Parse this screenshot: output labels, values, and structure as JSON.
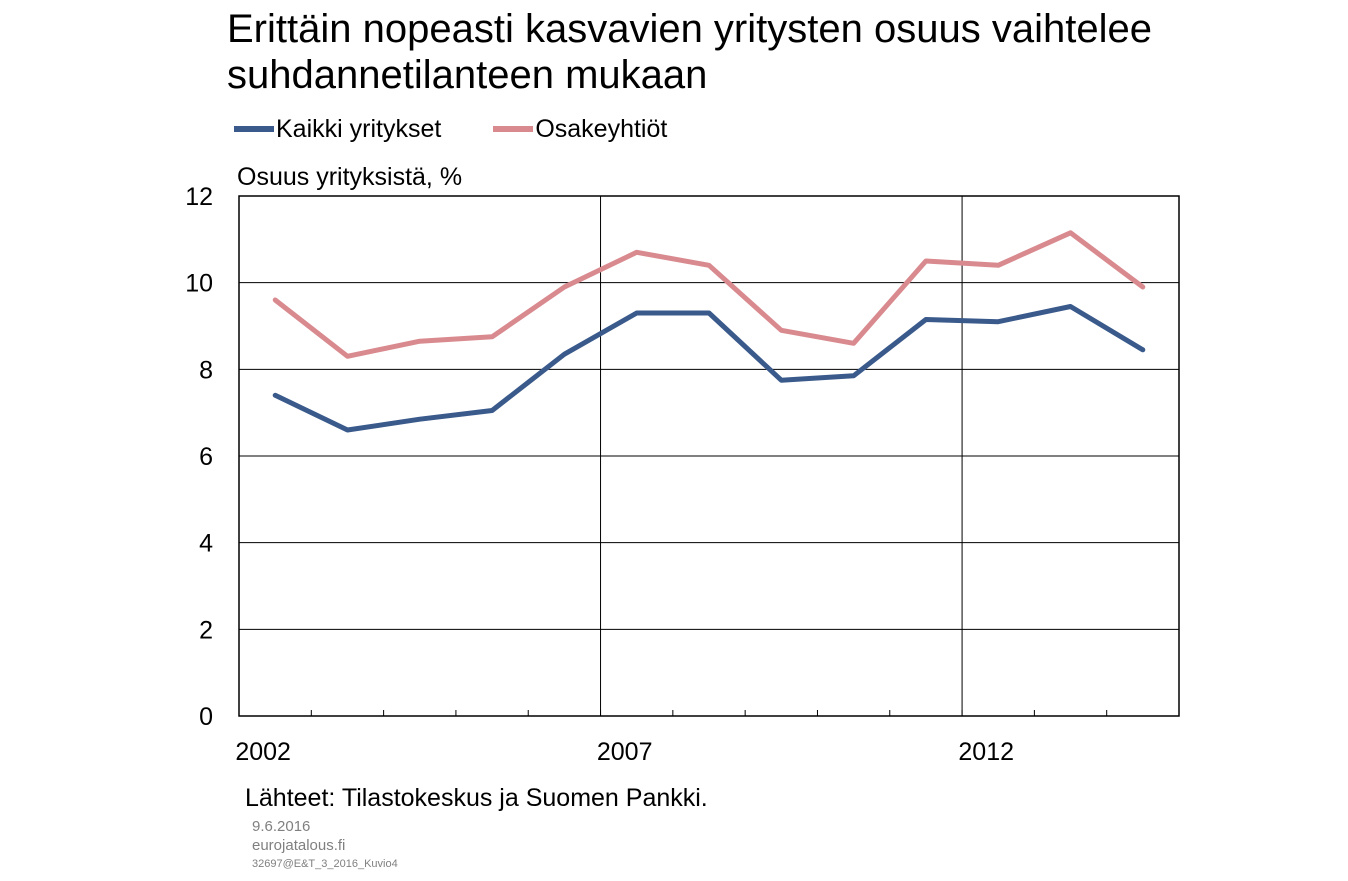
{
  "title_lines": [
    "Erittäin nopeasti kasvavien yritysten osuus vaihtelee",
    "suhdannetilanteen mukaan"
  ],
  "source": "Lähteet: Tilastokeskus ja Suomen Pankki.",
  "date": "9.6.2016",
  "site": "eurojatalous.fi",
  "code": "32697@E&T_3_2016_Kuvio4",
  "colors": {
    "series_1": "#3a5a8c",
    "series_2": "#d98a8f",
    "grid": "#000000"
  },
  "chart_data": {
    "type": "line",
    "title": "Erittäin nopeasti kasvavien yritysten osuus vaihtelee suhdannetilanteen mukaan",
    "ylabel": "Osuus yrityksistä, %",
    "xlabel": "",
    "x": [
      2002,
      2003,
      2004,
      2005,
      2006,
      2007,
      2008,
      2009,
      2010,
      2011,
      2012,
      2013,
      2014
    ],
    "x_tick_labels": [
      "2002",
      "2007",
      "2012"
    ],
    "ylim": [
      0,
      12
    ],
    "y_ticks": [
      0,
      2,
      4,
      6,
      8,
      10,
      12
    ],
    "grid": true,
    "legend_position": "top",
    "series": [
      {
        "name": "Kaikki yritykset",
        "values": [
          7.4,
          6.6,
          6.85,
          7.05,
          8.35,
          9.3,
          9.3,
          7.75,
          7.85,
          9.15,
          9.1,
          9.45,
          8.45
        ]
      },
      {
        "name": "Osakeyhtiöt",
        "values": [
          9.6,
          8.3,
          8.65,
          8.75,
          9.9,
          10.7,
          10.4,
          8.9,
          8.6,
          10.5,
          10.4,
          11.15,
          9.9
        ]
      }
    ]
  }
}
